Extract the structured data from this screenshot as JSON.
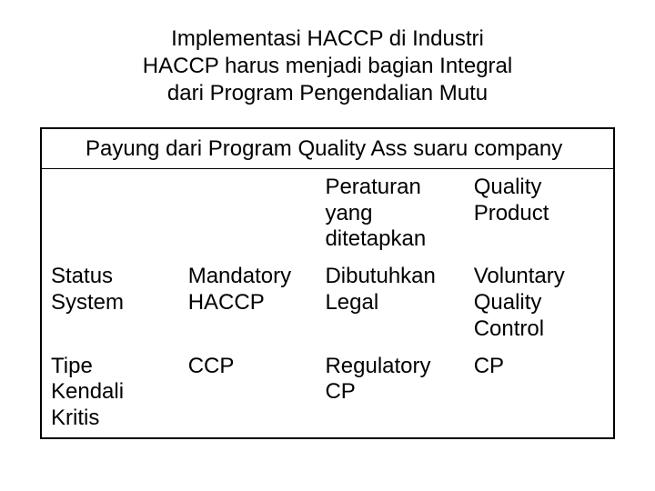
{
  "heading": {
    "line1": "Implementasi HACCP di Industri",
    "line2": "HACCP harus menjadi bagian Integral",
    "line3": "dari Program Pengendalian Mutu"
  },
  "table": {
    "title": "Payung dari Program Quality Ass suaru company",
    "rows": [
      {
        "c1": "",
        "c2": "",
        "c3": "Peraturan yang ditetapkan",
        "c4": "Quality Product"
      },
      {
        "c1": "Status System",
        "c2": "Mandatory HACCP",
        "c3": "Dibutuhkan Legal",
        "c4": "Voluntary Quality Control"
      },
      {
        "c1": "Tipe Kendali Kritis",
        "c2": "CCP",
        "c3": "Regulatory CP",
        "c4": "CP"
      }
    ],
    "border_color": "#000000",
    "background_color": "#ffffff",
    "font_size_pt": 18,
    "text_color": "#000000"
  }
}
